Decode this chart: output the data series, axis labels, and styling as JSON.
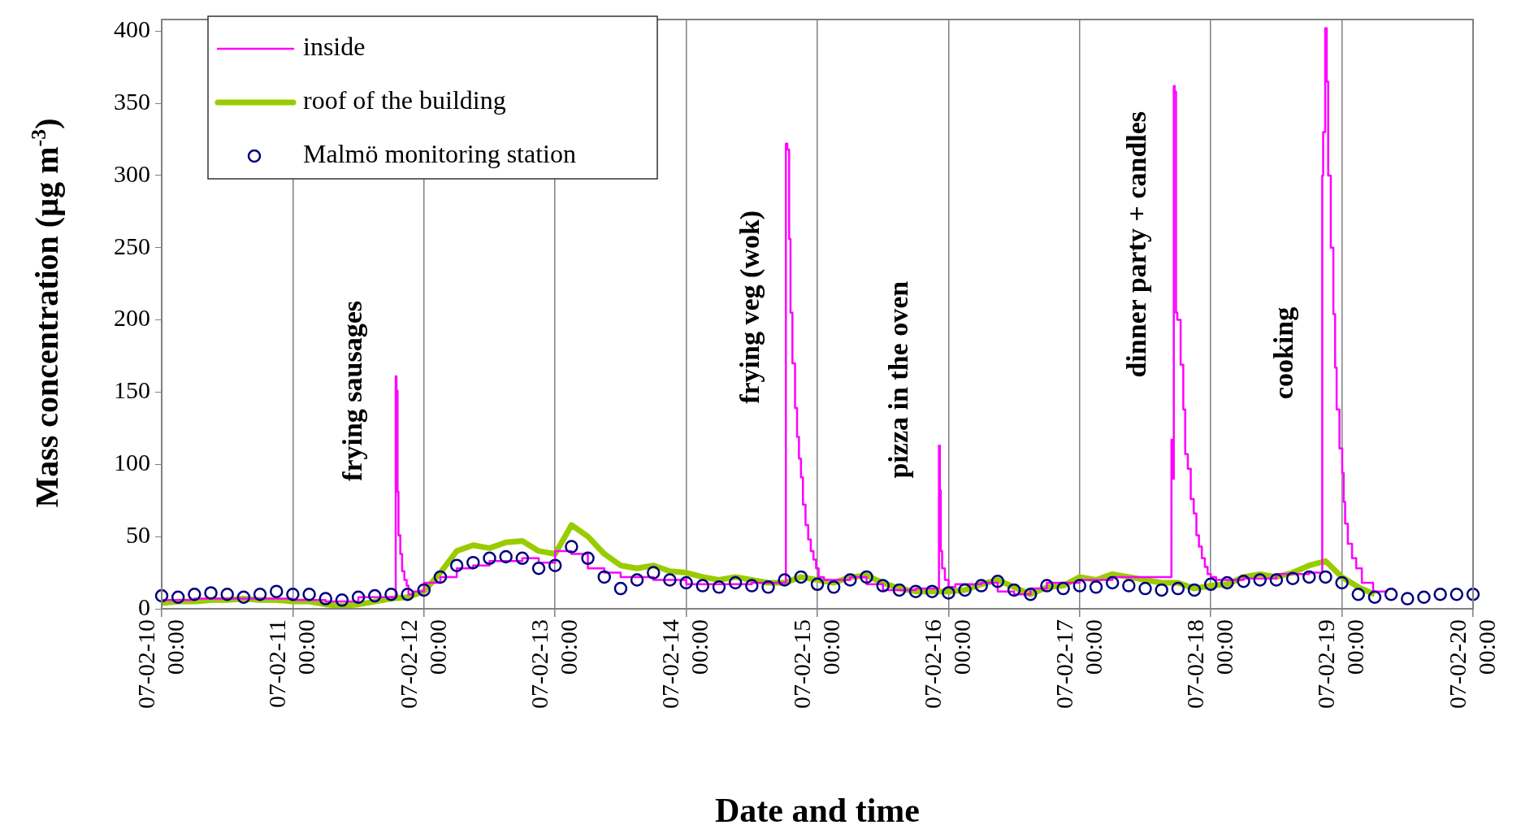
{
  "chart_data": {
    "type": "line",
    "xlabel": "Date and time",
    "ylabel": "Mass concentration (µg m$^{-3}$)",
    "x": [
      "--02-10T00:00",
      "--02-10T03:00",
      "--02-10T06:00",
      "--02-10T09:00",
      "--02-10T12:00",
      "--02-10T15:00",
      "--02-10T18:00",
      "--02-10T21:00",
      "--02-11T00:00",
      "--02-11T03:00",
      "--02-11T06:00",
      "--02-11T09:00",
      "--02-11T12:00",
      "--02-11T15:00",
      "--02-11T18:00",
      "--02-11T21:00",
      "--02-12T00:00",
      "--02-12T03:00",
      "--02-12T06:00",
      "--02-12T09:00",
      "--02-12T12:00",
      "--02-12T15:00",
      "--02-12T18:00",
      "--02-12T21:00",
      "--02-13T00:00",
      "--02-13T03:00",
      "--02-13T06:00",
      "--02-13T09:00",
      "--02-13T12:00",
      "--02-13T15:00",
      "--02-13T18:00",
      "--02-13T21:00",
      "--02-14T00:00",
      "--02-14T03:00",
      "--02-14T06:00",
      "--02-14T09:00",
      "--02-14T12:00",
      "--02-14T15:00",
      "--02-14T18:00",
      "--02-14T21:00",
      "--02-15T00:00",
      "--02-15T03:00",
      "--02-15T06:00",
      "--02-15T09:00",
      "--02-15T12:00",
      "--02-15T15:00",
      "--02-15T18:00",
      "--02-15T21:00",
      "--02-16T00:00",
      "--02-16T03:00",
      "--02-16T06:00",
      "--02-16T09:00",
      "--02-16T12:00",
      "--02-16T15:00",
      "--02-16T18:00",
      "--02-16T21:00",
      "--02-17T00:00",
      "--02-17T03:00",
      "--02-17T06:00",
      "--02-17T09:00",
      "--02-17T12:00",
      "--02-17T15:00",
      "--02-17T18:00",
      "--02-17T21:00",
      "--02-18T00:00",
      "--02-18T03:00",
      "--02-18T06:00",
      "--02-18T09:00",
      "--02-18T12:00",
      "--02-18T15:00",
      "--02-18T18:00",
      "--02-18T21:00",
      "--02-19T00:00",
      "--02-19T03:00",
      "--02-19T06:00",
      "--02-19T09:00",
      "--02-19T12:00",
      "--02-19T15:00",
      "--02-19T18:00",
      "--02-19T21:00",
      "--02-20T00:00"
    ],
    "series": [
      {
        "name": "inside",
        "type": "step",
        "color": "#ff00ff",
        "x": [
          "--02-10T00:00",
          "--02-10T06:00",
          "--02-10T12:00",
          "--02-10T18:00",
          "--02-11T00:00",
          "--02-11T06:00",
          "--02-11T12:00",
          "--02-11T18:50",
          "--02-11T18:58",
          "--02-11T19:10",
          "--02-11T19:20",
          "--02-11T19:40",
          "--02-11T20:00",
          "--02-11T20:25",
          "--02-11T20:50",
          "--02-11T21:10",
          "--02-11T22:00",
          "--02-12T00:00",
          "--02-12T03:00",
          "--02-12T06:00",
          "--02-12T09:00",
          "--02-12T12:00",
          "--02-12T15:00",
          "--02-12T18:00",
          "--02-12T21:00",
          "--02-13T00:00",
          "--02-13T03:00",
          "--02-13T06:00",
          "--02-13T09:00",
          "--02-13T12:00",
          "--02-13T18:00",
          "--02-14T00:00",
          "--02-14T06:00",
          "--02-14T12:00",
          "--02-14T18:14",
          "--02-14T18:30",
          "--02-14T18:50",
          "--02-14T19:05",
          "--02-14T19:26",
          "--02-14T19:55",
          "--02-14T20:17",
          "--02-14T20:38",
          "--02-14T21:00",
          "--02-14T21:22",
          "--02-14T21:50",
          "--02-14T22:19",
          "--02-14T22:48",
          "--02-14T23:17",
          "--02-14T23:46",
          "--02-15T00:14",
          "--02-15T01:12",
          "--02-15T02:24",
          "--02-15T06:00",
          "--02-15T09:00",
          "--02-15T12:00",
          "--02-15T18:00",
          "--02-15T22:15",
          "--02-15T22:25",
          "--02-15T22:35",
          "--02-15T22:50",
          "--02-15T23:20",
          "--02-16T00:00",
          "--02-16T01:15",
          "--02-16T06:00",
          "--02-16T09:00",
          "--02-16T12:00",
          "--02-16T15:00",
          "--02-16T18:00",
          "--02-17T00:00",
          "--02-17T06:00",
          "--02-17T12:00",
          "--02-17T16:48",
          "--02-17T17:05",
          "--02-17T17:14",
          "--02-17T17:23",
          "--02-17T17:38",
          "--02-17T17:53",
          "--02-17T18:29",
          "--02-17T18:58",
          "--02-17T19:19",
          "--02-17T19:48",
          "--02-17T20:20",
          "--02-17T20:53",
          "--02-17T21:22",
          "--02-17T21:50",
          "--02-17T22:22",
          "--02-17T22:55",
          "--02-17T23:25",
          "--02-18T00:00",
          "--02-18T00:58",
          "--02-18T03:36",
          "--02-18T06:00",
          "--02-18T12:00",
          "--02-18T18:00",
          "--02-18T20:24",
          "--02-18T20:34",
          "--02-18T20:56",
          "--02-18T21:13",
          "--02-18T21:29",
          "--02-18T21:58",
          "--02-18T22:26",
          "--02-18T22:45",
          "--02-18T23:02",
          "--02-18T23:33",
          "--02-19T00:03",
          "--02-19T00:19",
          "--02-19T00:35",
          "--02-19T01:05",
          "--02-19T01:51",
          "--02-19T02:37",
          "--02-19T03:39",
          "--02-19T05:43",
          "--02-19T08:24"
        ],
        "values": [
          6,
          6,
          7,
          7,
          7,
          6,
          5,
          8,
          161,
          151,
          81,
          51,
          38,
          26,
          20,
          16,
          10,
          12,
          18,
          22,
          28,
          30,
          33,
          33,
          35,
          32,
          40,
          38,
          28,
          25,
          22,
          20,
          17,
          17,
          18,
          322,
          318,
          256,
          205,
          170,
          139,
          119,
          104,
          91,
          72,
          58,
          48,
          40,
          34,
          28,
          22,
          20,
          20,
          22,
          17,
          13,
          14,
          113,
          82,
          40,
          28,
          20,
          15,
          17,
          18,
          12,
          10,
          14,
          18,
          20,
          22,
          22,
          117,
          90,
          362,
          358,
          205,
          200,
          169,
          138,
          107,
          97,
          76,
          66,
          51,
          43,
          35,
          29,
          24,
          22,
          20,
          20,
          21,
          24,
          25,
          300,
          330,
          402,
          365,
          300,
          250,
          204,
          167,
          138,
          111,
          94,
          74,
          59,
          45,
          35,
          28,
          18,
          12
        ]
      },
      {
        "name": "roof of the building",
        "color": "#99cc00",
        "values": [
          4,
          5,
          5,
          6,
          6,
          7,
          6,
          6,
          5,
          5,
          3,
          2,
          3,
          5,
          7,
          8,
          12,
          25,
          40,
          44,
          42,
          46,
          47,
          40,
          38,
          58,
          50,
          38,
          30,
          28,
          30,
          26,
          25,
          22,
          20,
          22,
          20,
          18,
          18,
          22,
          20,
          18,
          22,
          23,
          18,
          14,
          12,
          12,
          12,
          13,
          17,
          20,
          15,
          10,
          15,
          16,
          22,
          20,
          24,
          22,
          20,
          18,
          18,
          14,
          16,
          17,
          22,
          24,
          22,
          25,
          30,
          33,
          22,
          15,
          10,
          null,
          null,
          null,
          null,
          null,
          null
        ]
      },
      {
        "name": "Malmö monitoring station",
        "type": "scatter",
        "marker": "circle",
        "color": "#000080",
        "values": [
          9,
          8,
          10,
          11,
          10,
          8,
          10,
          12,
          10,
          10,
          7,
          6,
          8,
          9,
          10,
          10,
          13,
          22,
          30,
          32,
          35,
          36,
          35,
          28,
          30,
          43,
          35,
          22,
          14,
          20,
          25,
          20,
          18,
          16,
          15,
          18,
          16,
          15,
          20,
          22,
          17,
          15,
          20,
          22,
          16,
          13,
          12,
          12,
          11,
          13,
          16,
          19,
          13,
          10,
          16,
          14,
          16,
          15,
          18,
          16,
          14,
          13,
          14,
          13,
          17,
          18,
          19,
          20,
          20,
          21,
          22,
          22,
          18,
          10,
          8,
          10,
          7,
          8,
          10,
          10,
          10
        ]
      }
    ],
    "ylim": [
      0,
      408
    ],
    "yticks": [
      0,
      50,
      100,
      150,
      200,
      250,
      300,
      350,
      400
    ],
    "xlim": [
      "--02-10T00:00",
      "--02-20T00:00"
    ],
    "xticks": [
      {
        "value": "--02-10T00:00",
        "label": "07-02-10 00:00"
      },
      {
        "value": "--02-11T00:00",
        "label": "07-02-11 00:00"
      },
      {
        "value": "--02-12T00:00",
        "label": "07-02-12 00:00"
      },
      {
        "value": "--02-13T00:00",
        "label": "07-02-13 00:00"
      },
      {
        "value": "--02-14T00:00",
        "label": "07-02-14 00:00"
      },
      {
        "value": "--02-15T00:00",
        "label": "07-02-15 00:00"
      },
      {
        "value": "--02-16T00:00",
        "label": "07-02-16 00:00"
      },
      {
        "value": "--02-17T00:00",
        "label": "07-02-17 00:00"
      },
      {
        "value": "--02-18T00:00",
        "label": "07-02-18 00:00"
      },
      {
        "value": "--02-19T00:00",
        "label": "07-02-19 00:00"
      },
      {
        "value": "--02-20T00:00",
        "label": "07-02-20 00:00"
      }
    ],
    "grid": "x",
    "legend": "top left",
    "annotations": [
      {
        "text": "frying sausages",
        "x": "--02-11T18:58",
        "y": 161
      },
      {
        "text": "frying veg (wok)",
        "x": "--02-14T18:30",
        "y": 322
      },
      {
        "text": "pizza in the oven",
        "x": "--02-15T22:25",
        "y": 113
      },
      {
        "text": "dinner party + candles",
        "x": "--02-17T17:23",
        "y": 362
      },
      {
        "text": "cooking",
        "x": "--02-18T20:34",
        "y": 177
      }
    ]
  }
}
